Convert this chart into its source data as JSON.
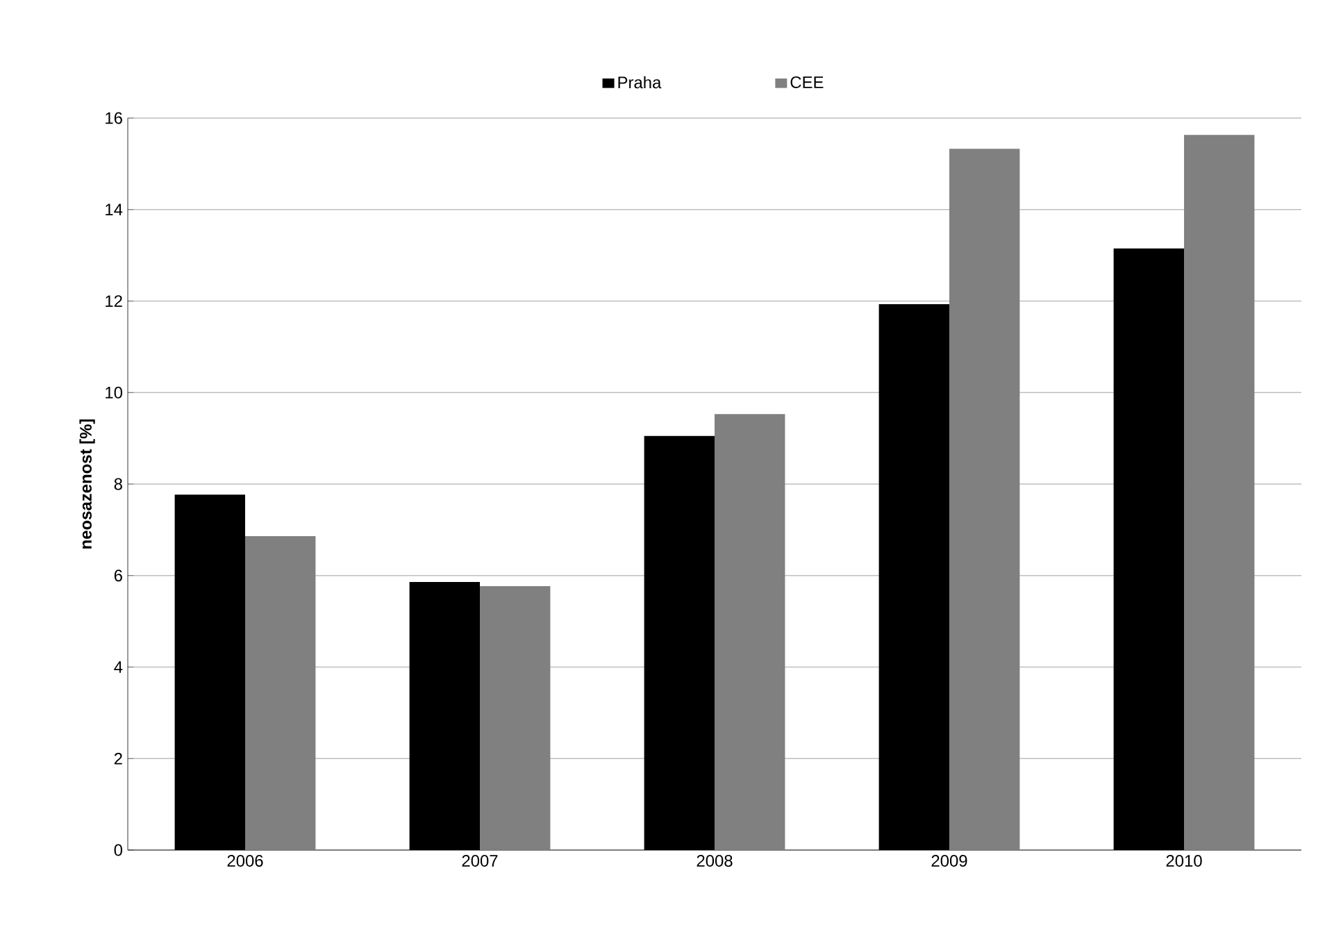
{
  "chart_data": {
    "type": "bar",
    "ylabel": "neosazenost [%]",
    "categories": [
      "2006",
      "2007",
      "2008",
      "2009",
      "2010"
    ],
    "series": [
      {
        "name": "Praha",
        "color": "#000000",
        "values": [
          7.77,
          5.86,
          9.05,
          11.93,
          13.15
        ]
      },
      {
        "name": "CEE",
        "color": "#808080",
        "values": [
          6.86,
          5.77,
          9.53,
          15.33,
          15.63
        ]
      }
    ],
    "ylim": [
      0,
      16
    ],
    "yticks": [
      0,
      2,
      4,
      6,
      8,
      10,
      12,
      14,
      16
    ],
    "grid": "y",
    "legend": "top"
  }
}
